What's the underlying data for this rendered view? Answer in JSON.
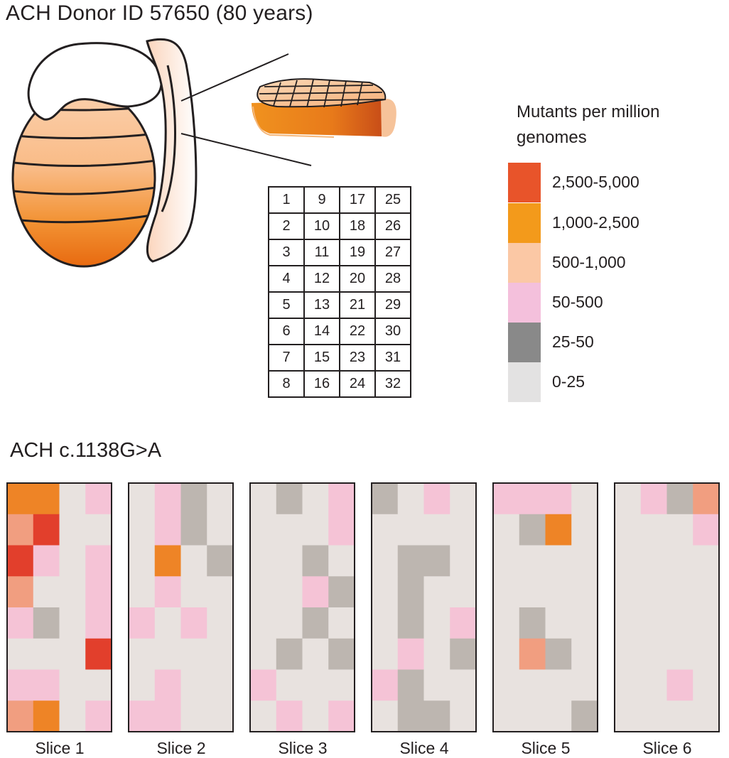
{
  "title": "ACH Donor ID 57650 (80 years)",
  "mutation_label": "ACH c.1138G>A",
  "legend": {
    "title": "Mutants per million genomes",
    "items": [
      {
        "label": "2,500-5,000",
        "color": "#e8542a"
      },
      {
        "label": "1,000-2,500",
        "color": "#f39a1b"
      },
      {
        "label": "500-1,000",
        "color": "#fbc8a5"
      },
      {
        "label": "50-500",
        "color": "#f4c0dc"
      },
      {
        "label": "25-50",
        "color": "#898989"
      },
      {
        "label": "0-25",
        "color": "#e3e2e2"
      }
    ]
  },
  "piece_grid": [
    [
      "1",
      "9",
      "17",
      "25"
    ],
    [
      "2",
      "10",
      "18",
      "26"
    ],
    [
      "3",
      "11",
      "19",
      "27"
    ],
    [
      "4",
      "12",
      "20",
      "28"
    ],
    [
      "5",
      "13",
      "21",
      "29"
    ],
    [
      "6",
      "14",
      "22",
      "30"
    ],
    [
      "7",
      "15",
      "23",
      "31"
    ],
    [
      "8",
      "16",
      "24",
      "32"
    ]
  ],
  "heatmap_colors": {
    "bg": "#e8e2df",
    "gray": "#bdb6b0",
    "pink": "#f5c3d6",
    "salmon": "#f19e80",
    "orange": "#ee8426",
    "red": "#e23f2c"
  },
  "slices": [
    {
      "label": "Slice 1",
      "cells": [
        [
          "orange",
          "orange",
          "bg",
          "pink"
        ],
        [
          "salmon",
          "red",
          "bg",
          "bg"
        ],
        [
          "red",
          "pink",
          "bg",
          "pink"
        ],
        [
          "salmon",
          "bg",
          "bg",
          "pink"
        ],
        [
          "pink",
          "gray",
          "bg",
          "pink"
        ],
        [
          "bg",
          "bg",
          "bg",
          "red"
        ],
        [
          "pink",
          "pink",
          "bg",
          "bg"
        ],
        [
          "salmon",
          "orange",
          "bg",
          "pink"
        ]
      ]
    },
    {
      "label": "Slice 2",
      "cells": [
        [
          "bg",
          "pink",
          "gray",
          "bg"
        ],
        [
          "bg",
          "pink",
          "gray",
          "bg"
        ],
        [
          "bg",
          "orange",
          "bg",
          "gray"
        ],
        [
          "bg",
          "pink",
          "bg",
          "bg"
        ],
        [
          "pink",
          "bg",
          "pink",
          "bg"
        ],
        [
          "bg",
          "bg",
          "bg",
          "bg"
        ],
        [
          "bg",
          "pink",
          "bg",
          "bg"
        ],
        [
          "pink",
          "pink",
          "bg",
          "bg"
        ]
      ]
    },
    {
      "label": "Slice 3",
      "cells": [
        [
          "bg",
          "gray",
          "bg",
          "pink"
        ],
        [
          "bg",
          "bg",
          "bg",
          "pink"
        ],
        [
          "bg",
          "bg",
          "gray",
          "bg"
        ],
        [
          "bg",
          "bg",
          "pink",
          "gray"
        ],
        [
          "bg",
          "bg",
          "gray",
          "bg"
        ],
        [
          "bg",
          "gray",
          "bg",
          "gray"
        ],
        [
          "pink",
          "bg",
          "bg",
          "bg"
        ],
        [
          "bg",
          "pink",
          "bg",
          "pink"
        ]
      ]
    },
    {
      "label": "Slice 4",
      "cells": [
        [
          "gray",
          "bg",
          "pink",
          "bg"
        ],
        [
          "bg",
          "bg",
          "bg",
          "bg"
        ],
        [
          "bg",
          "gray",
          "gray",
          "bg"
        ],
        [
          "bg",
          "gray",
          "bg",
          "bg"
        ],
        [
          "bg",
          "gray",
          "bg",
          "pink"
        ],
        [
          "bg",
          "pink",
          "bg",
          "gray"
        ],
        [
          "pink",
          "gray",
          "bg",
          "bg"
        ],
        [
          "bg",
          "gray",
          "gray",
          "bg"
        ]
      ]
    },
    {
      "label": "Slice 5",
      "cells": [
        [
          "pink",
          "pink",
          "pink",
          "bg"
        ],
        [
          "bg",
          "gray",
          "orange",
          "bg"
        ],
        [
          "bg",
          "bg",
          "bg",
          "bg"
        ],
        [
          "bg",
          "bg",
          "bg",
          "bg"
        ],
        [
          "bg",
          "gray",
          "bg",
          "bg"
        ],
        [
          "bg",
          "salmon",
          "gray",
          "bg"
        ],
        [
          "bg",
          "bg",
          "bg",
          "bg"
        ],
        [
          "bg",
          "bg",
          "bg",
          "gray"
        ]
      ]
    },
    {
      "label": "Slice 6",
      "cells": [
        [
          "bg",
          "pink",
          "gray",
          "salmon"
        ],
        [
          "bg",
          "bg",
          "bg",
          "pink"
        ],
        [
          "bg",
          "bg",
          "bg",
          "bg"
        ],
        [
          "bg",
          "bg",
          "bg",
          "bg"
        ],
        [
          "bg",
          "bg",
          "bg",
          "bg"
        ],
        [
          "bg",
          "bg",
          "bg",
          "bg"
        ],
        [
          "bg",
          "bg",
          "pink",
          "bg"
        ],
        [
          "bg",
          "bg",
          "bg",
          "bg"
        ]
      ]
    }
  ]
}
